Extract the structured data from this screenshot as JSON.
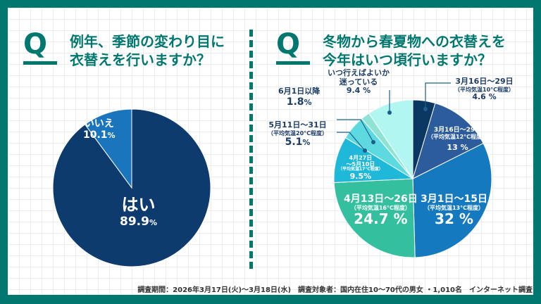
{
  "survey_note": "調査期間：2026年3月17日(火)〜3月18日(水)　調査対象者：国内在住10〜70代の男女 ・1,010名　インターネット調査",
  "chart_data": [
    {
      "type": "pie",
      "q_mark": "Q",
      "title": "例年、季節の変わり目に\n衣替えを行いますか？",
      "slices": [
        {
          "label": "いいえ",
          "value": 10.1,
          "color": "#1a75bc"
        },
        {
          "label": "はい",
          "value": 89.9,
          "color": "#0d3b6e"
        }
      ]
    },
    {
      "type": "pie",
      "q_mark": "Q",
      "title": "冬物から春夏物への衣替えを\n今年はいつ頃行いますか？",
      "slices": [
        {
          "label": "3月16日〜29日",
          "note": "（平均気温10°C程度）",
          "value": 4.6,
          "color": "#0b3763"
        },
        {
          "label": "3月16日〜29日",
          "note": "（平均気温12°C程度）",
          "value": 13.0,
          "color": "#2d5c9c"
        },
        {
          "label": "3月1日〜15日",
          "note": "（平均気温13°C程度）",
          "value": 32.0,
          "color": "#1479bf"
        },
        {
          "label": "4月13日〜26日",
          "note": "（平均気温16°C程度）",
          "value": 24.7,
          "color": "#34bf9f"
        },
        {
          "label": "4月27日\n〜5月10日",
          "note": "（平均気温17°C程度）",
          "value": 9.5,
          "color": "#1fb8d9"
        },
        {
          "label": "5月11日〜31日",
          "note": "（平均気温20°C程度）",
          "value": 5.1,
          "color": "#5dd9e0"
        },
        {
          "label": "6月1日以降",
          "note": "",
          "value": 1.8,
          "color": "#8fe3d3"
        },
        {
          "label": "いつ行えばよいか\n迷っている",
          "note": "",
          "value": 9.4,
          "color": "#b2f6f2"
        }
      ]
    }
  ]
}
